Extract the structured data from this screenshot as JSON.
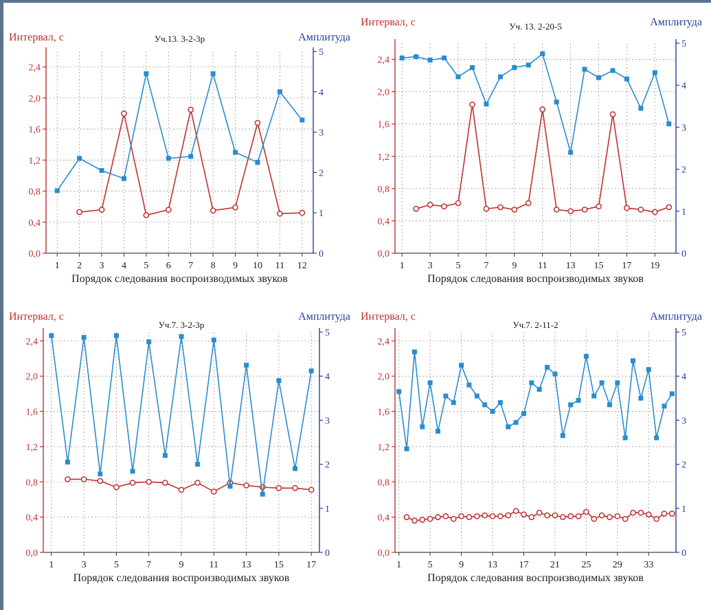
{
  "colors": {
    "interval": "#c0302e",
    "amplitude": "#2a8ccf",
    "left_axis": "#c03030",
    "right_axis": "#2a3b9e"
  },
  "chart_data": [
    {
      "type": "line",
      "title": "Уч.13. 3-2-3р",
      "ylabel": "Интервал, с",
      "ylabel_right": "Амплитуда",
      "xlabel": "Порядок следования воспроизводимых звуков",
      "x_ticks": [
        1,
        2,
        3,
        4,
        5,
        6,
        7,
        8,
        9,
        10,
        11,
        12
      ],
      "xlim": [
        0.5,
        12.5
      ],
      "ylim": [
        0,
        2.6
      ],
      "y_ticks": [
        "0,0",
        "0,4",
        "0,8",
        "1,2",
        "1,6",
        "2,0",
        "2,4"
      ],
      "y2lim": [
        0,
        5
      ],
      "y2_ticks": [
        "0",
        "1",
        "2",
        "3",
        "4",
        "5"
      ],
      "grid": true,
      "series": [
        {
          "marker": "open-circle",
          "axis": "left",
          "x": [
            2,
            3,
            4,
            5,
            6,
            7,
            8,
            9,
            10,
            11,
            12
          ],
          "values": [
            0.53,
            0.56,
            1.8,
            0.49,
            0.56,
            1.85,
            0.55,
            0.59,
            1.68,
            0.51,
            0.52
          ]
        },
        {
          "marker": "square",
          "axis": "right",
          "x": [
            1,
            2,
            3,
            4,
            5,
            6,
            7,
            8,
            9,
            10,
            11,
            12
          ],
          "values": [
            1.55,
            2.35,
            2.05,
            1.85,
            4.45,
            2.35,
            2.4,
            4.45,
            2.5,
            2.25,
            4.0,
            3.3
          ]
        }
      ]
    },
    {
      "type": "line",
      "title": "Уч. 13. 2-20-5",
      "ylabel": "Интервал, с",
      "ylabel_right": "Амплитуда",
      "xlabel": "Порядок следования воспроизводимых звуков",
      "x_ticks": [
        1,
        3,
        5,
        7,
        9,
        11,
        13,
        15,
        17,
        19
      ],
      "xlim": [
        0.5,
        20.5
      ],
      "ylim": [
        0,
        2.6
      ],
      "y_ticks": [
        "0,0",
        "0,4",
        "0,8",
        "1,2",
        "1,6",
        "2,0",
        "2,4"
      ],
      "y2lim": [
        0,
        5
      ],
      "y2_ticks": [
        "0",
        "1",
        "2",
        "3",
        "4",
        "5"
      ],
      "grid": true,
      "series": [
        {
          "marker": "open-circle",
          "axis": "left",
          "x": [
            2,
            3,
            4,
            5,
            6,
            7,
            8,
            9,
            10,
            11,
            12,
            13,
            14,
            15,
            16,
            17,
            18,
            19,
            20
          ],
          "values": [
            0.55,
            0.6,
            0.58,
            0.62,
            1.84,
            0.55,
            0.57,
            0.54,
            0.62,
            1.78,
            0.54,
            0.52,
            0.54,
            0.58,
            1.72,
            0.56,
            0.54,
            0.51,
            0.57
          ]
        },
        {
          "marker": "square",
          "axis": "right",
          "x": [
            1,
            2,
            3,
            4,
            5,
            6,
            7,
            8,
            9,
            10,
            11,
            12,
            13,
            14,
            15,
            16,
            17,
            18,
            19,
            20
          ],
          "values": [
            4.65,
            4.68,
            4.6,
            4.65,
            4.2,
            4.42,
            3.55,
            4.2,
            4.42,
            4.48,
            4.75,
            3.6,
            2.4,
            4.38,
            4.18,
            4.35,
            4.15,
            3.45,
            4.3,
            3.08
          ]
        }
      ]
    },
    {
      "type": "line",
      "title": "Уч.7. 3-2-3р",
      "ylabel": "Интервал, с",
      "ylabel_right": "Амплитуда",
      "xlabel": "Порядок следования воспроизводимых звуков",
      "x_ticks": [
        1,
        3,
        5,
        7,
        9,
        11,
        13,
        15,
        17
      ],
      "xlim": [
        0.5,
        17.5
      ],
      "ylim": [
        0,
        2.5
      ],
      "y_ticks": [
        "0,0",
        "0,4",
        "0,8",
        "1,2",
        "1,6",
        "2,0",
        "2,4"
      ],
      "y2lim": [
        0,
        5
      ],
      "y2_ticks": [
        "0",
        "1",
        "2",
        "3",
        "4",
        "5"
      ],
      "grid": true,
      "series": [
        {
          "marker": "open-circle",
          "axis": "left",
          "x": [
            2,
            3,
            4,
            5,
            6,
            7,
            8,
            9,
            10,
            11,
            12,
            13,
            14,
            15,
            16,
            17
          ],
          "values": [
            0.83,
            0.83,
            0.81,
            0.74,
            0.79,
            0.8,
            0.79,
            0.71,
            0.79,
            0.69,
            0.79,
            0.76,
            0.74,
            0.73,
            0.73,
            0.71
          ]
        },
        {
          "marker": "square",
          "axis": "right",
          "x": [
            1,
            2,
            3,
            4,
            5,
            6,
            7,
            8,
            9,
            10,
            11,
            12,
            13,
            14,
            15,
            16,
            17
          ],
          "values": [
            4.92,
            2.05,
            4.88,
            1.78,
            4.92,
            1.84,
            4.78,
            2.2,
            4.9,
            2.0,
            4.82,
            1.5,
            4.25,
            1.32,
            3.9,
            1.9,
            4.12
          ]
        }
      ]
    },
    {
      "type": "line",
      "title": "Уч.7. 2-11-2",
      "ylabel": "Интервал, с",
      "ylabel_right": "Амплитуда",
      "xlabel": "Порядок следования воспроизводимых звуков",
      "x_ticks": [
        1,
        5,
        9,
        13,
        17,
        21,
        25,
        29,
        33
      ],
      "xlim": [
        0.5,
        36.5
      ],
      "ylim": [
        0,
        2.5
      ],
      "y_ticks": [
        "0,0",
        "0,4",
        "0,8",
        "1,2",
        "1,6",
        "2,0",
        "2,4"
      ],
      "y2lim": [
        0,
        5
      ],
      "y2_ticks": [
        "0",
        "1",
        "2",
        "3",
        "4",
        "5"
      ],
      "grid": true,
      "series": [
        {
          "marker": "open-circle",
          "axis": "left",
          "x": [
            2,
            3,
            4,
            5,
            6,
            7,
            8,
            9,
            10,
            11,
            12,
            13,
            14,
            15,
            16,
            17,
            18,
            19,
            20,
            21,
            22,
            23,
            24,
            25,
            26,
            27,
            28,
            29,
            30,
            31,
            32,
            33,
            34,
            35,
            36
          ],
          "values": [
            0.4,
            0.36,
            0.37,
            0.38,
            0.4,
            0.41,
            0.38,
            0.41,
            0.4,
            0.41,
            0.42,
            0.41,
            0.41,
            0.42,
            0.47,
            0.43,
            0.4,
            0.45,
            0.42,
            0.42,
            0.4,
            0.41,
            0.41,
            0.46,
            0.38,
            0.42,
            0.4,
            0.41,
            0.38,
            0.45,
            0.45,
            0.43,
            0.38,
            0.44,
            0.44
          ]
        },
        {
          "marker": "square",
          "axis": "right",
          "x": [
            1,
            2,
            3,
            4,
            5,
            6,
            7,
            8,
            9,
            10,
            11,
            12,
            13,
            14,
            15,
            16,
            17,
            18,
            19,
            20,
            21,
            22,
            23,
            24,
            25,
            26,
            27,
            28,
            29,
            30,
            31,
            32,
            33,
            34,
            35,
            36
          ],
          "values": [
            3.65,
            2.35,
            4.55,
            2.85,
            3.85,
            2.75,
            3.55,
            3.4,
            4.25,
            3.8,
            3.55,
            3.35,
            3.2,
            3.4,
            2.85,
            2.95,
            3.15,
            3.85,
            3.7,
            4.2,
            4.05,
            2.65,
            3.35,
            3.45,
            4.45,
            3.55,
            3.85,
            3.35,
            3.85,
            2.6,
            4.35,
            3.5,
            4.15,
            2.6,
            3.32,
            3.6
          ]
        }
      ]
    }
  ]
}
